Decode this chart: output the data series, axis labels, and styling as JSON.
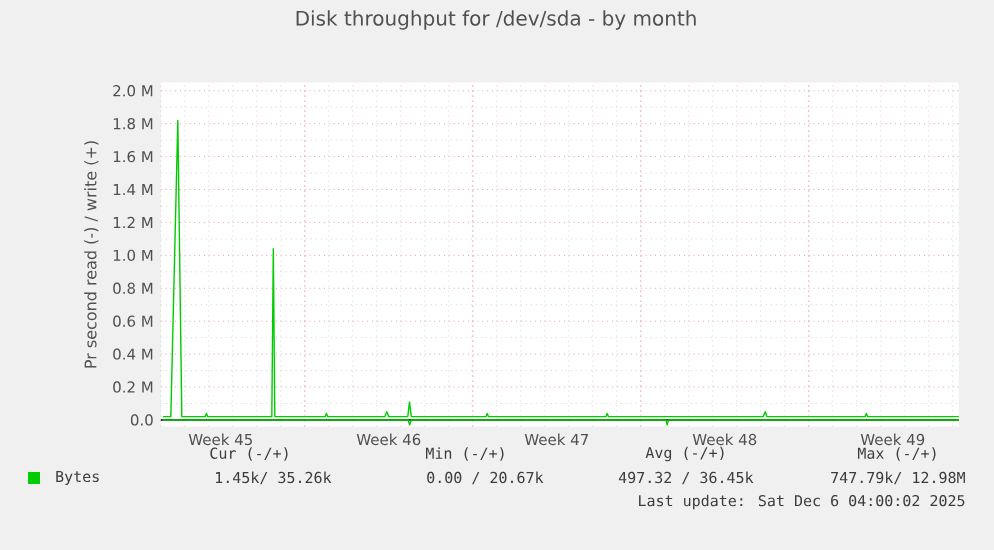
{
  "chart_data": {
    "type": "line",
    "title": "Disk throughput for /dev/sda - by month",
    "ylabel": "Pr second read (-) / write (+)",
    "xlim": [
      "2025-11-04T00:00",
      "2025-12-07T06:00"
    ],
    "xticks": [
      {
        "value": "2025-11-06T12:00",
        "label": "Week 45"
      },
      {
        "value": "2025-11-10T00:00",
        "label": null
      },
      {
        "value": "2025-11-13T12:00",
        "label": "Week 46"
      },
      {
        "value": "2025-11-17T00:00",
        "label": null
      },
      {
        "value": "2025-11-20T12:00",
        "label": "Week 47"
      },
      {
        "value": "2025-11-24T00:00",
        "label": null
      },
      {
        "value": "2025-11-27T12:00",
        "label": "Week 48"
      },
      {
        "value": "2025-12-01T00:00",
        "label": null
      },
      {
        "value": "2025-12-04T12:00",
        "label": "Week 49"
      }
    ],
    "ylim": [
      -40000,
      2050000
    ],
    "yticks": [
      {
        "value": 0,
        "label": "0.0"
      },
      {
        "value": 200000,
        "label": "0.2 M"
      },
      {
        "value": 400000,
        "label": "0.4 M"
      },
      {
        "value": 600000,
        "label": "0.6 M"
      },
      {
        "value": 800000,
        "label": "0.8 M"
      },
      {
        "value": 1000000,
        "label": "1.0 M"
      },
      {
        "value": 1200000,
        "label": "1.2 M"
      },
      {
        "value": 1400000,
        "label": "1.4 M"
      },
      {
        "value": 1600000,
        "label": "1.6 M"
      },
      {
        "value": 1800000,
        "label": "1.8 M"
      },
      {
        "value": 2000000,
        "label": "2.0 M"
      }
    ],
    "grid": true,
    "legend": "bottom left",
    "series": [
      {
        "name": "Bytes",
        "color": "#00cc00",
        "x": [
          "2025-11-04T02:00",
          "2025-11-04T10:00",
          "2025-11-04T17:00",
          "2025-11-04T21:00",
          "2025-11-05T20:20",
          "2025-11-05T21:40",
          "2025-11-05T22:50",
          "2025-11-08T15:00",
          "2025-11-08T16:30",
          "2025-11-08T18:00",
          "2025-11-10T20:20",
          "2025-11-10T21:40",
          "2025-11-10T22:50",
          "2025-11-13T08:00",
          "2025-11-13T10:00",
          "2025-11-13T12:00",
          "2025-11-14T07:00",
          "2025-11-14T08:40",
          "2025-11-14T10:30",
          "2025-11-17T13:10",
          "2025-11-17T14:20",
          "2025-11-17T15:40",
          "2025-11-22T13:10",
          "2025-11-22T14:20",
          "2025-11-22T15:40",
          "2025-11-29T02:20",
          "2025-11-29T04:30",
          "2025-11-29T06:00",
          "2025-12-03T08:20",
          "2025-12-03T09:40",
          "2025-12-03T10:50",
          "2025-12-07T06:00"
        ],
        "values": [
          20000,
          20000,
          1820000,
          20000,
          20000,
          40000,
          20000,
          20000,
          1040000,
          20000,
          20000,
          40000,
          20000,
          20000,
          50000,
          20000,
          20000,
          110000,
          20000,
          20000,
          40000,
          20000,
          20000,
          40000,
          20000,
          20000,
          50000,
          20000,
          20000,
          40000,
          20000,
          20000
        ]
      },
      {
        "color": "#00cc00",
        "x": [
          "2025-11-04T02:00",
          "2025-11-14T07:10",
          "2025-11-14T08:50",
          "2025-11-14T10:30",
          "2025-11-25T01:10",
          "2025-11-25T02:20",
          "2025-11-25T03:40",
          "2025-12-07T06:00"
        ],
        "values": [
          0,
          0,
          -30000,
          0,
          0,
          -30000,
          0,
          0
        ]
      }
    ],
    "annotations": [
      "Cur (-/+)",
      "Min (-/+)",
      "Avg (-/+)",
      "Max (-/+)",
      "1.45k/ 35.26k",
      "0.00 / 20.67k",
      "497.32 / 36.45k",
      "747.79k/ 12.98M",
      "Last update: Sat Dec  6 04:00:02 2025"
    ]
  }
}
